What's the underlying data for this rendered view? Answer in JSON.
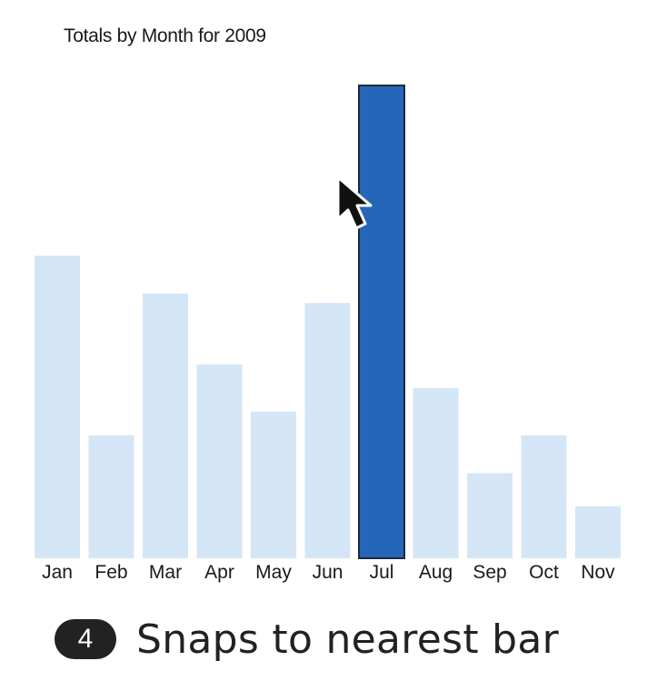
{
  "chart_data": {
    "type": "bar",
    "title": "Totals by Month for 2009",
    "categories": [
      "Jan",
      "Feb",
      "Mar",
      "Apr",
      "May",
      "Jun",
      "Jul",
      "Aug",
      "Sep",
      "Oct",
      "Nov"
    ],
    "values": [
      64,
      26,
      56,
      41,
      31,
      54,
      100,
      36,
      18,
      26,
      11
    ],
    "ylim": [
      0,
      100
    ],
    "highlighted_category": "Jul",
    "colors": {
      "bar": "#d4e6f6",
      "highlight": "#2566b8",
      "highlight_stroke": "#1d2b3a"
    },
    "grid": false
  },
  "caption": {
    "step_number": "4",
    "text": "Snaps to nearest bar"
  },
  "cursor": {
    "icon": "arrow-cursor-icon"
  }
}
